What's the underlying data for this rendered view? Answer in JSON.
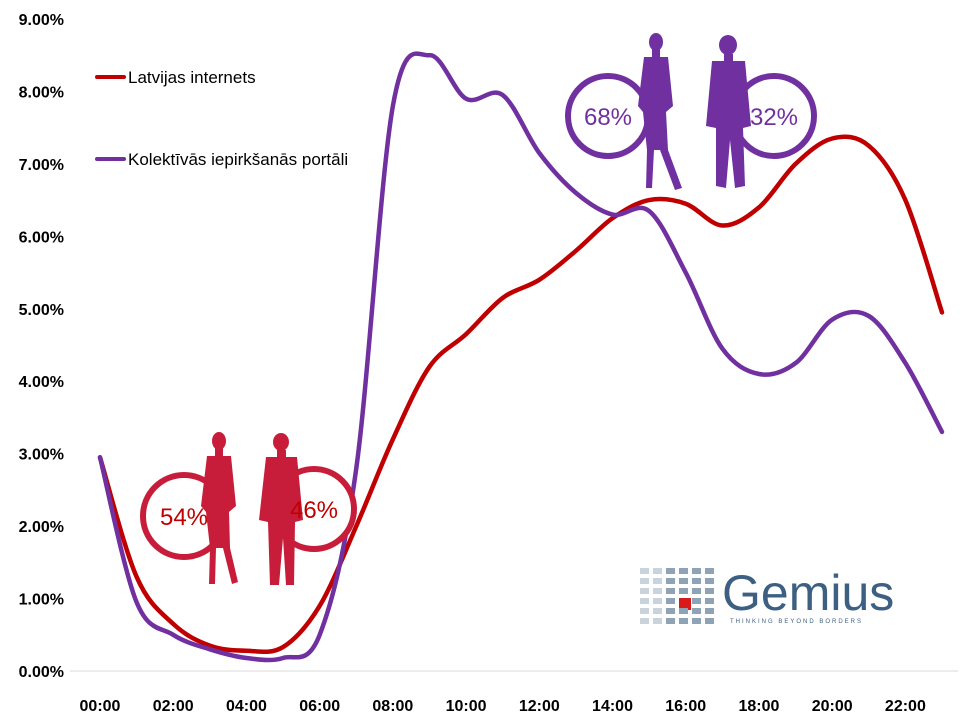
{
  "chart_data": {
    "type": "line",
    "x": [
      "00:00",
      "01:00",
      "02:00",
      "03:00",
      "04:00",
      "05:00",
      "06:00",
      "07:00",
      "08:00",
      "09:00",
      "10:00",
      "11:00",
      "12:00",
      "13:00",
      "14:00",
      "15:00",
      "16:00",
      "17:00",
      "18:00",
      "19:00",
      "20:00",
      "21:00",
      "22:00",
      "23:00"
    ],
    "x_tick_labels": [
      "00:00",
      "02:00",
      "04:00",
      "06:00",
      "08:00",
      "10:00",
      "12:00",
      "14:00",
      "16:00",
      "18:00",
      "20:00",
      "22:00"
    ],
    "y_tick_labels": [
      "0.00%",
      "1.00%",
      "2.00%",
      "3.00%",
      "4.00%",
      "5.00%",
      "6.00%",
      "7.00%",
      "8.00%",
      "9.00%"
    ],
    "ylim": [
      0,
      9
    ],
    "y_unit": "%",
    "grid": false,
    "legend_position": "top-left",
    "series": [
      {
        "name": "Latvijas internets",
        "color": "#c00000",
        "values": [
          2.95,
          1.3,
          0.65,
          0.35,
          0.28,
          0.33,
          0.9,
          2.0,
          3.2,
          4.2,
          4.65,
          5.15,
          5.4,
          5.8,
          6.25,
          6.5,
          6.45,
          6.15,
          6.4,
          7.0,
          7.35,
          7.25,
          6.5,
          4.95
        ]
      },
      {
        "name": "Kolektīvās iepirkšanās portāli",
        "color": "#7030a0",
        "values": [
          2.95,
          0.95,
          0.5,
          0.3,
          0.18,
          0.18,
          0.5,
          2.8,
          7.8,
          8.5,
          7.9,
          7.95,
          7.15,
          6.6,
          6.3,
          6.35,
          5.5,
          4.45,
          4.1,
          4.25,
          4.85,
          4.9,
          4.25,
          3.3
        ]
      }
    ],
    "annotations": [
      {
        "group": "Latvijas internets",
        "female": "54%",
        "male": "46%",
        "color": "#c00000"
      },
      {
        "group": "Kolektīvās iepirkšanās portāli",
        "female": "68%",
        "male": "32%",
        "color": "#7030a0"
      }
    ]
  },
  "logo": {
    "name": "Gemius",
    "tagline": "THINKING BEYOND BORDERS",
    "color": "#3d5f82",
    "accent": "#d91a1a"
  }
}
